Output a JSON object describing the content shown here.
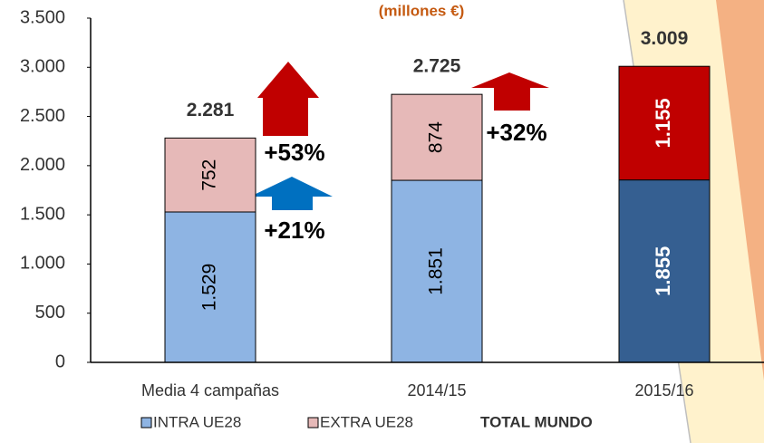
{
  "chart_data": {
    "type": "stacked_bar",
    "title": "(millones €)",
    "categories": [
      "Media 4 campañas",
      "2014/15",
      "2015/16"
    ],
    "series": [
      {
        "name": "INTRA UE28",
        "color": "#8eb4e3",
        "point_colors": [
          "#8eb4e3",
          "#8eb4e3",
          "#355f91"
        ],
        "values": [
          1529,
          1851,
          1855
        ],
        "value_labels": [
          "1.529",
          "1.851",
          "1.855"
        ]
      },
      {
        "name": "EXTRA UE28",
        "color": "#e6b9b8",
        "point_colors": [
          "#e6b9b8",
          "#e6b9b8",
          "#c00000"
        ],
        "values": [
          752,
          874,
          1155
        ],
        "value_labels": [
          "752",
          "874",
          "1.155"
        ]
      }
    ],
    "totals": {
      "name": "TOTAL MUNDO",
      "values": [
        2281,
        2725,
        3009
      ],
      "value_labels": [
        "2.281",
        "2.725",
        "3.009"
      ]
    },
    "annotations": [
      "+53%",
      "+21%",
      "+32%"
    ],
    "ylim": [
      0,
      3500
    ],
    "yticks": [
      0,
      500,
      {
        "value": 1000,
        "label": "1.000"
      },
      {
        "value": 1500,
        "label": "1.500"
      },
      {
        "value": 2000,
        "label": "2.000"
      },
      {
        "value": 2500,
        "label": "2.500"
      },
      {
        "value": 3000,
        "label": "3.000"
      },
      {
        "value": 3500,
        "label": "3.500"
      }
    ],
    "grid": false
  }
}
